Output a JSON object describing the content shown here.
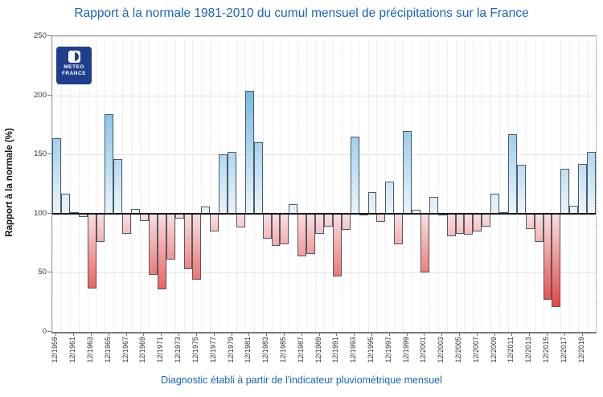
{
  "title": "Rapport à la normale 1981-2010 du cumul mensuel de précipitations sur la France",
  "caption": "Diagnostic établi à partir de l'indicateur pluviométrique mensuel",
  "logo": {
    "line1": "METEO",
    "line2": "FRANCE"
  },
  "y_axis": {
    "label": "Rapport à la normale (%)",
    "ticks": [
      0,
      50,
      100,
      150,
      200,
      250
    ]
  },
  "x_axis": {
    "tick_labels": [
      "12/1959",
      "12/1961",
      "12/1963",
      "12/1965",
      "12/1967",
      "12/1969",
      "12/1971",
      "12/1973",
      "12/1975",
      "12/1977",
      "12/1979",
      "12/1981",
      "12/1983",
      "12/1985",
      "12/1987",
      "12/1989",
      "12/1991",
      "12/1993",
      "12/1995",
      "12/1997",
      "12/1999",
      "12/2001",
      "12/2003",
      "12/2005",
      "12/2007",
      "12/2009",
      "12/2011",
      "12/2013",
      "12/2015",
      "12/2017",
      "12/2019"
    ]
  },
  "colors": {
    "title_blue": "#1a64b4",
    "bar_blue_deep": "#3f9fd8",
    "bar_blue_pale": "#eaf4fb",
    "bar_red_deep": "#e8403c",
    "bar_red_pale": "#fadede",
    "bar_border": "#4d5a66",
    "baseline_black": "#1a1a1a",
    "logo_navy": "#1f3d8a"
  },
  "chart_data": {
    "type": "bar",
    "title": "Rapport à la normale 1981-2010 du cumul mensuel de précipitations sur la France",
    "xlabel": "",
    "ylabel": "Rapport à la normale (%)",
    "ylim": [
      0,
      250
    ],
    "baseline": 100,
    "grid": true,
    "legend": "none",
    "categories": [
      "12/1959",
      "12/1960",
      "12/1961",
      "12/1962",
      "12/1963",
      "12/1964",
      "12/1965",
      "12/1966",
      "12/1967",
      "12/1968",
      "12/1969",
      "12/1970",
      "12/1971",
      "12/1972",
      "12/1973",
      "12/1974",
      "12/1975",
      "12/1976",
      "12/1977",
      "12/1978",
      "12/1979",
      "12/1980",
      "12/1981",
      "12/1982",
      "12/1983",
      "12/1984",
      "12/1985",
      "12/1986",
      "12/1987",
      "12/1988",
      "12/1989",
      "12/1990",
      "12/1991",
      "12/1992",
      "12/1993",
      "12/1994",
      "12/1995",
      "12/1996",
      "12/1997",
      "12/1998",
      "12/1999",
      "12/2000",
      "12/2001",
      "12/2002",
      "12/2003",
      "12/2004",
      "12/2005",
      "12/2006",
      "12/2007",
      "12/2008",
      "12/2009",
      "12/2010",
      "12/2011",
      "12/2012",
      "12/2013",
      "12/2014",
      "12/2015",
      "12/2016",
      "12/2017",
      "12/2018",
      "12/2019",
      "12/2020"
    ],
    "values": [
      164,
      117,
      101,
      97,
      37,
      76,
      184,
      146,
      83,
      104,
      94,
      48,
      36,
      61,
      96,
      53,
      44,
      106,
      85,
      150,
      152,
      88,
      204,
      160,
      79,
      73,
      74,
      108,
      64,
      66,
      83,
      89,
      47,
      86,
      165,
      99,
      118,
      93,
      127,
      74,
      170,
      103,
      50,
      114,
      100,
      81,
      83,
      82,
      85,
      89,
      117,
      101,
      167,
      141,
      87,
      76,
      27,
      21,
      138,
      107,
      142,
      152
    ]
  }
}
